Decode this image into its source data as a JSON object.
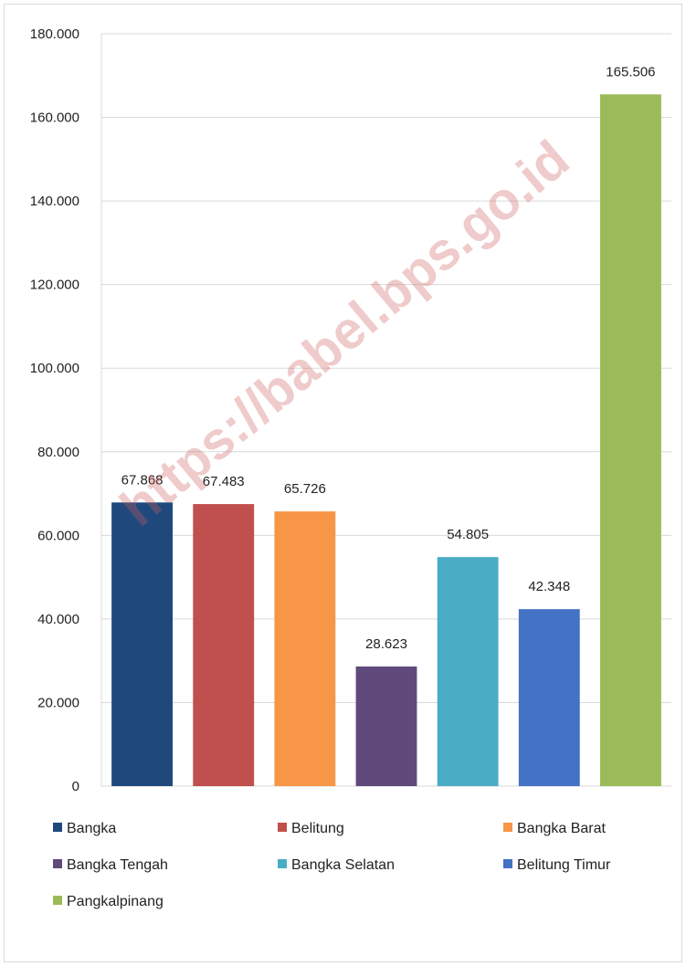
{
  "chart_data": {
    "type": "bar",
    "categories": [
      "Bangka",
      "Belitung",
      "Bangka Barat",
      "Bangka Tengah",
      "Bangka Selatan",
      "Belitung Timur",
      "Pangkalpinang"
    ],
    "values": [
      67868,
      67483,
      65726,
      28623,
      54805,
      42348,
      165506
    ],
    "value_labels": [
      "67.868",
      "67.483",
      "65.726",
      "28.623",
      "54.805",
      "42.348",
      "165.506"
    ],
    "colors": [
      "#1F497D",
      "#C0504D",
      "#F79646",
      "#604A7B",
      "#4BACC6",
      "#4472C4",
      "#9BBB59"
    ],
    "ylim": [
      0,
      180000
    ],
    "yticks": [
      0,
      20000,
      40000,
      60000,
      80000,
      100000,
      120000,
      140000,
      160000,
      180000
    ],
    "ytick_labels": [
      "0",
      "20.000",
      "40.000",
      "60.000",
      "80.000",
      "100.000",
      "120.000",
      "140.000",
      "160.000",
      "180.000"
    ],
    "grid": true,
    "legend_position": "bottom",
    "title": "",
    "xlabel": "",
    "ylabel": ""
  },
  "watermark": "https://babel.bps.go.id"
}
